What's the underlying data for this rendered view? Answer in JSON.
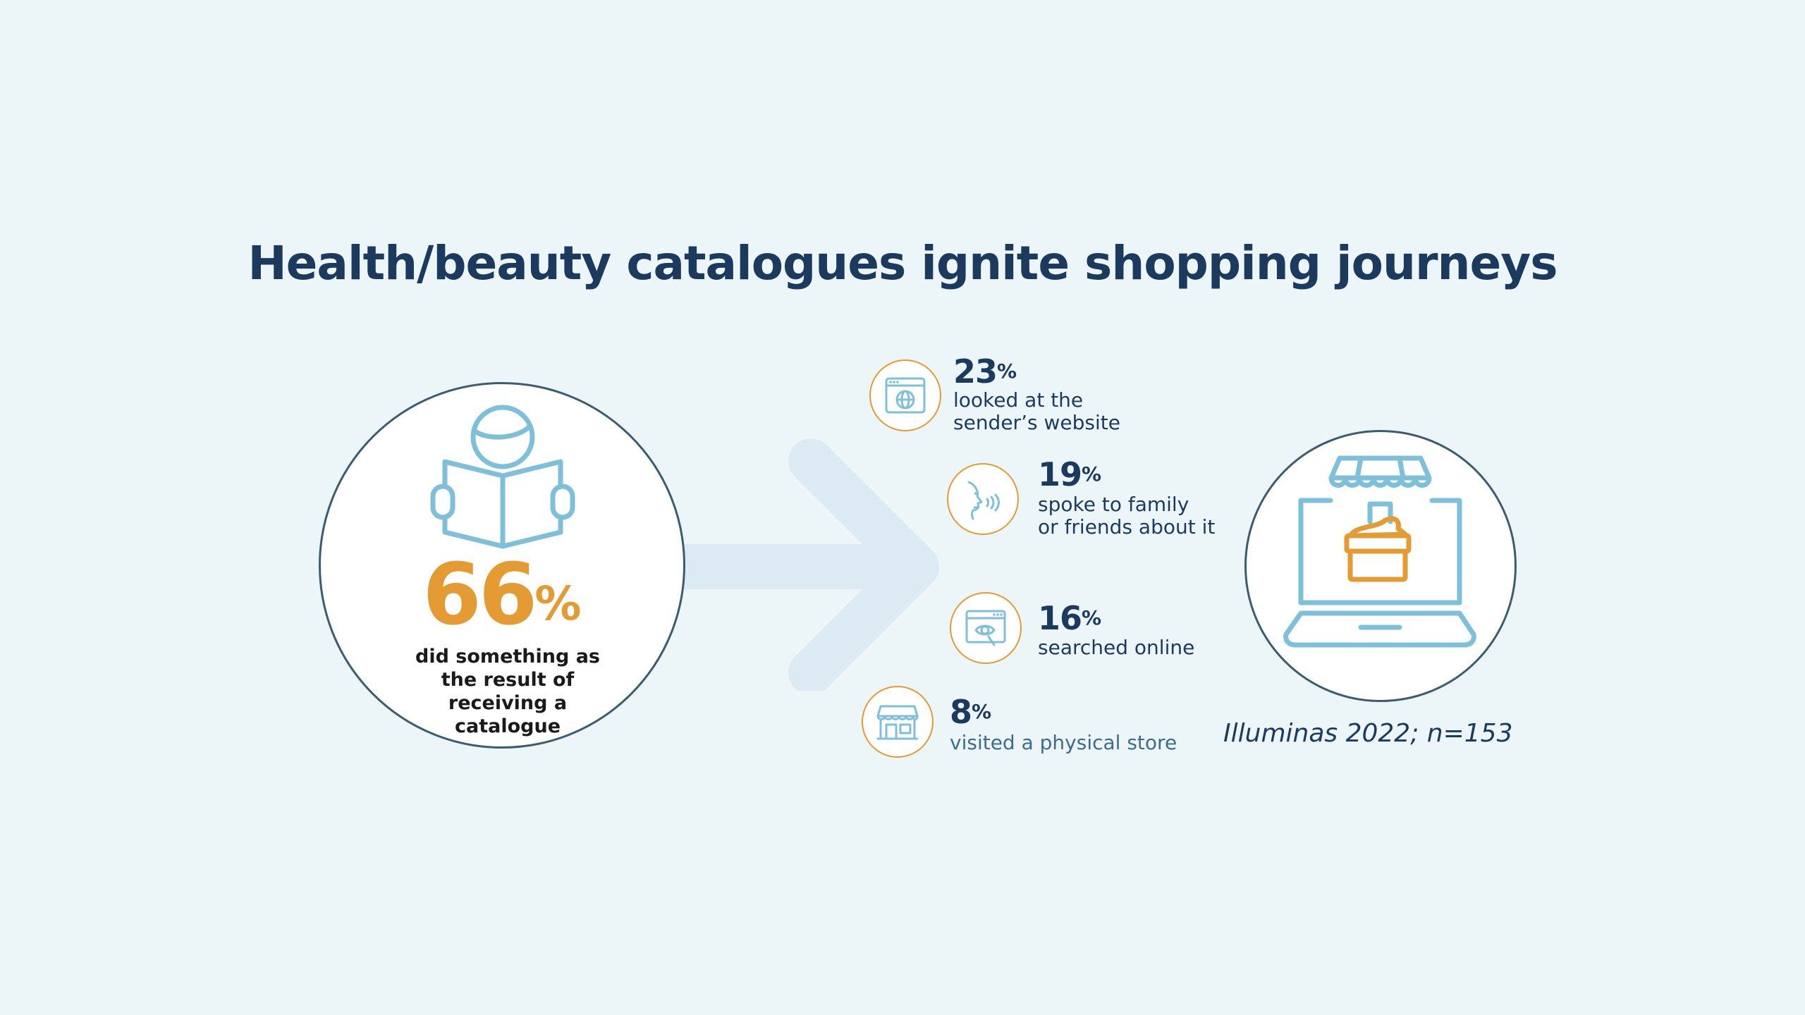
{
  "title": "Health/beauty catalogues ignite shopping journeys",
  "colors": {
    "background": "#ecf5f8",
    "navy": "#1b3a5e",
    "orange": "#e49b34",
    "icon_blue": "#7ec0da",
    "circle_border": "#3d5c6e",
    "arrow": "#dcebf3"
  },
  "main_stat": {
    "value": "66",
    "unit": "%",
    "description": "did something as the result of receiving a catalogue",
    "icon": "reading-person-icon"
  },
  "stats": [
    {
      "value": "23",
      "unit": "%",
      "label": "looked at the\nsender’s website",
      "icon": "website-globe-icon"
    },
    {
      "value": "19",
      "unit": "%",
      "label": "spoke to family\nor friends about it",
      "icon": "speaking-face-icon"
    },
    {
      "value": "16",
      "unit": "%",
      "label": "searched online",
      "icon": "online-search-icon"
    },
    {
      "value": "8",
      "unit": "%",
      "label": "visited a physical store",
      "icon": "storefront-icon"
    }
  ],
  "laptop_icon": "laptop-shop-icon",
  "source": "Illuminas 2022; n=153"
}
